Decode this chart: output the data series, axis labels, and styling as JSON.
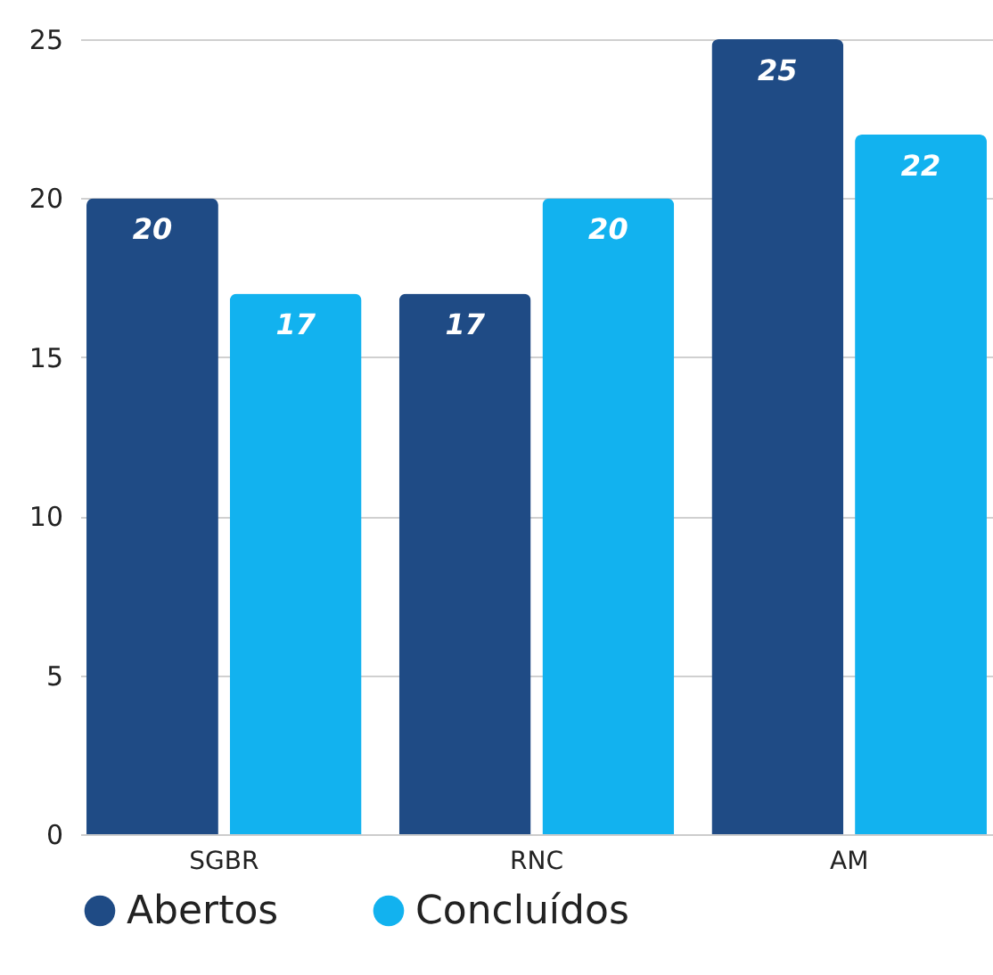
{
  "chart_data": {
    "type": "bar",
    "categories": [
      "SGBR",
      "RNC",
      "AM"
    ],
    "series": [
      {
        "name": "Abertos",
        "color": "#1f4b85",
        "values": [
          20,
          17,
          25
        ]
      },
      {
        "name": "Concluídos",
        "color": "#12b2ef",
        "values": [
          17,
          20,
          22
        ]
      }
    ],
    "ylim": [
      0,
      25
    ],
    "yticks": [
      0,
      5,
      10,
      15,
      20,
      25
    ],
    "grid": "y",
    "legend": "bottom",
    "data_labels": true
  }
}
